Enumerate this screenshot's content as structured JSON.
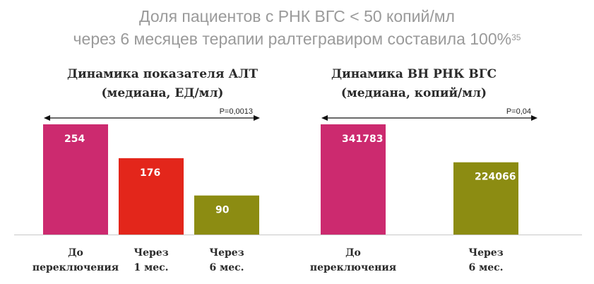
{
  "headline": {
    "line1": "Доля пациентов с РНК ВГС < 50 копий/мл",
    "line2": "через 6 месяцев терапии ралтегравиром составила 100%",
    "ref": "35"
  },
  "chart_data": [
    {
      "type": "bar",
      "title_lines": [
        "Динамика показателя АЛТ",
        "(медиана, ЕД/мл)"
      ],
      "categories": [
        [
          "До",
          "переключения"
        ],
        [
          "Через",
          "1 мес."
        ],
        [
          "Через",
          "6 мес."
        ]
      ],
      "values": [
        254,
        176,
        90
      ],
      "value_labels": [
        "254",
        "176",
        "90"
      ],
      "colors": [
        "#cc2a6f",
        "#e3261b",
        "#8c8c12"
      ],
      "p_value": "P=0,0013",
      "ylim": [
        0,
        300
      ],
      "grid": false
    },
    {
      "type": "bar",
      "title_lines": [
        "Динамика ВН РНК ВГС",
        "(медиана, копий/мл)"
      ],
      "categories": [
        [
          "До",
          "переключения"
        ],
        [
          "Через",
          "6 мес."
        ]
      ],
      "values": [
        341783,
        224066
      ],
      "value_labels": [
        "341783",
        "224066"
      ],
      "colors": [
        "#cc2a6f",
        "#8c8c12"
      ],
      "p_value": "P=0,04",
      "ylim": [
        0,
        400000
      ],
      "grid": false
    }
  ]
}
